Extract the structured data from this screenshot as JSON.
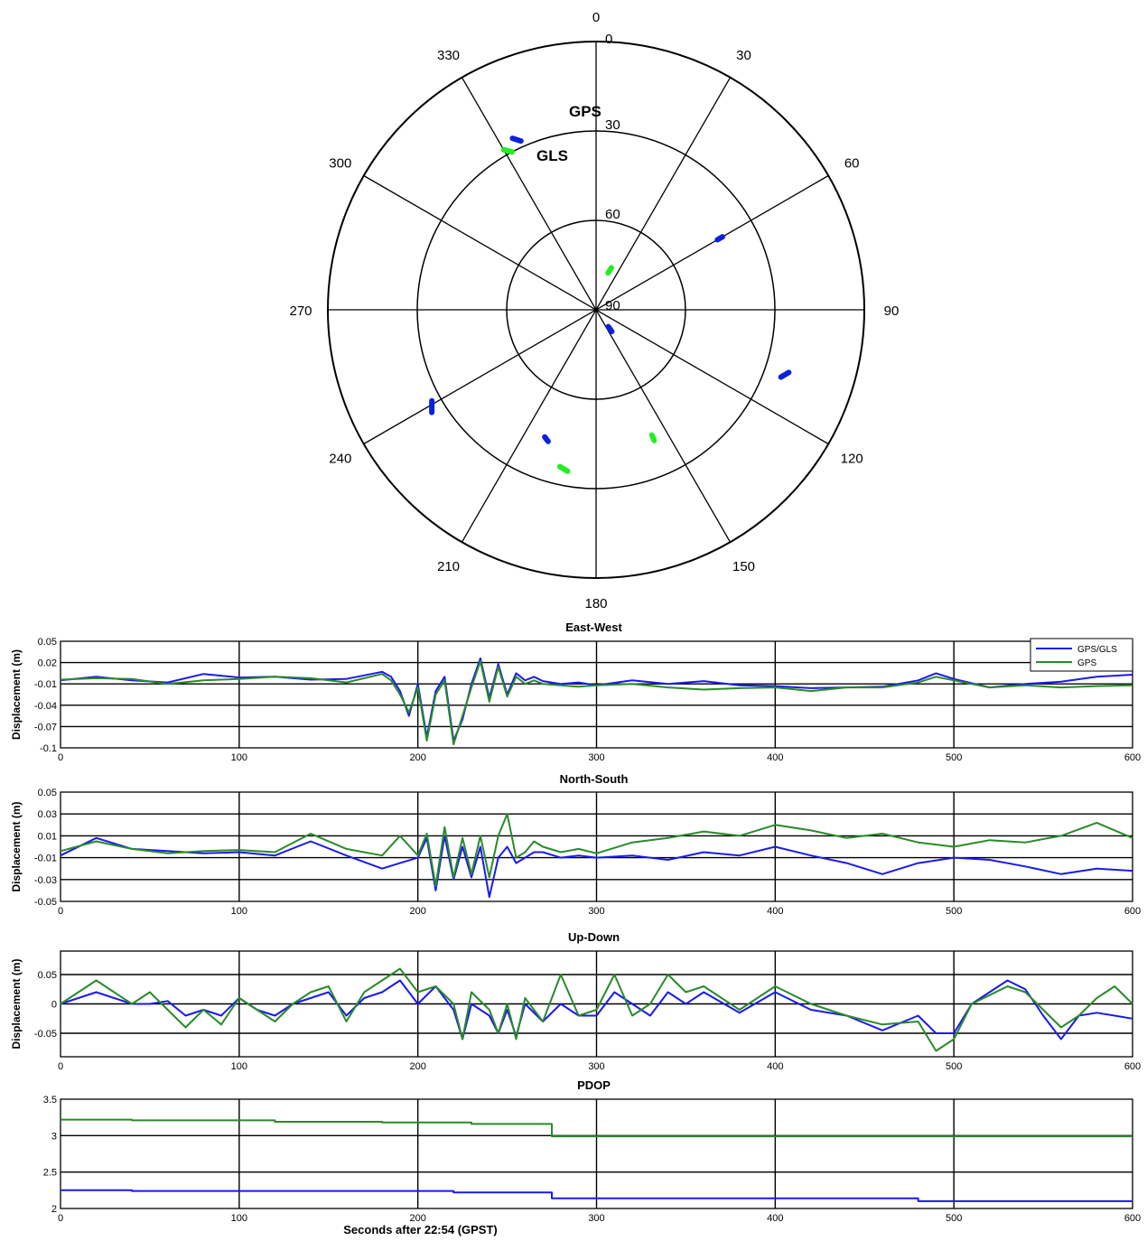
{
  "colors": {
    "gps_gls": "#1a1aee",
    "gps": "#2a8a2a",
    "polar_gps": "#0a22dd",
    "polar_gls": "#22ee22",
    "grid": "#000000"
  },
  "chart_data": [
    {
      "type": "polar-skyplot",
      "angle_labels": [
        "0",
        "30",
        "60",
        "90",
        "120",
        "150",
        "180",
        "210",
        "240",
        "270",
        "300",
        "330"
      ],
      "radial_labels": [
        "0",
        "30",
        "60",
        "90"
      ],
      "annotations": [
        "GPS",
        "GLS"
      ],
      "series": [
        {
          "name": "GPS",
          "tracks": [
            {
              "az": [
                -26,
                -24
              ],
              "el": [
                26,
                28
              ]
            },
            {
              "az": [
                60,
                60
              ],
              "el": [
                41,
                43
              ]
            },
            {
              "az": [
                108,
                110
              ],
              "el": [
                22,
                24
              ]
            },
            {
              "az": [
                -122,
                -119
              ],
              "el": [
                25,
                27
              ]
            },
            {
              "az": [
                -160,
                -158
              ],
              "el": [
                43,
                44
              ]
            },
            {
              "az": [
                144,
                144
              ],
              "el": [
                81,
                83
              ]
            }
          ]
        },
        {
          "name": "GLS",
          "tracks": [
            {
              "az": [
                -30,
                -28
              ],
              "el": [
                28,
                30
              ]
            },
            {
              "az": [
                20,
                18
              ],
              "el": [
                75,
                77
              ]
            },
            {
              "az": [
                156,
                156
              ],
              "el": [
                42,
                44
              ]
            },
            {
              "az": [
                -170,
                -167
              ],
              "el": [
                35,
                36
              ]
            }
          ]
        }
      ]
    },
    {
      "type": "line",
      "title": "East-West",
      "ylabel": "Displacement (m)",
      "xlim": [
        0,
        600
      ],
      "ylim": [
        -0.1,
        0.05
      ],
      "yticks": [
        "0.05",
        "0.02",
        "-0.01",
        "-0.04",
        "-0.07",
        "-0.1"
      ],
      "ytick_values": [
        0.05,
        0.02,
        -0.01,
        -0.04,
        -0.07,
        -0.1
      ],
      "xticks": [
        "0",
        "100",
        "200",
        "300",
        "400",
        "500",
        "600"
      ],
      "legend": [
        "GPS/GLS",
        "GPS"
      ],
      "legend_position": "top-right",
      "grid": true,
      "series": [
        {
          "name": "GPS/GLS",
          "x": [
            0,
            20,
            40,
            60,
            80,
            100,
            120,
            140,
            160,
            180,
            185,
            190,
            195,
            200,
            205,
            210,
            215,
            220,
            225,
            230,
            235,
            240,
            245,
            250,
            255,
            260,
            265,
            270,
            280,
            290,
            300,
            320,
            340,
            360,
            380,
            400,
            420,
            440,
            460,
            480,
            490,
            500,
            520,
            540,
            560,
            580,
            600
          ],
          "y": [
            -0.005,
            0.0,
            -0.005,
            -0.008,
            0.004,
            -0.001,
            0.0,
            -0.004,
            -0.003,
            0.007,
            0.0,
            -0.02,
            -0.055,
            -0.01,
            -0.085,
            -0.02,
            0.0,
            -0.09,
            -0.06,
            -0.01,
            0.026,
            -0.03,
            0.018,
            -0.025,
            0.005,
            -0.005,
            0.0,
            -0.006,
            -0.01,
            -0.008,
            -0.012,
            -0.005,
            -0.01,
            -0.006,
            -0.012,
            -0.013,
            -0.016,
            -0.015,
            -0.014,
            -0.005,
            0.005,
            -0.003,
            -0.015,
            -0.01,
            -0.007,
            0.0,
            0.003
          ]
        },
        {
          "name": "GPS",
          "x": [
            0,
            20,
            40,
            60,
            80,
            100,
            120,
            140,
            160,
            180,
            185,
            190,
            195,
            200,
            205,
            210,
            215,
            220,
            225,
            230,
            235,
            240,
            245,
            250,
            255,
            260,
            265,
            270,
            280,
            290,
            300,
            320,
            340,
            360,
            380,
            400,
            420,
            440,
            460,
            480,
            490,
            500,
            520,
            540,
            560,
            580,
            600
          ],
          "y": [
            -0.004,
            -0.002,
            -0.003,
            -0.01,
            -0.005,
            -0.003,
            0.0,
            -0.002,
            -0.008,
            0.004,
            -0.005,
            -0.025,
            -0.05,
            -0.015,
            -0.09,
            -0.025,
            -0.005,
            -0.095,
            -0.055,
            -0.015,
            0.022,
            -0.035,
            0.014,
            -0.028,
            0.0,
            -0.01,
            -0.005,
            -0.01,
            -0.012,
            -0.014,
            -0.012,
            -0.01,
            -0.015,
            -0.018,
            -0.016,
            -0.015,
            -0.02,
            -0.015,
            -0.015,
            -0.008,
            0.0,
            -0.005,
            -0.015,
            -0.012,
            -0.015,
            -0.013,
            -0.012
          ]
        }
      ]
    },
    {
      "type": "line",
      "title": "North-South",
      "ylabel": "Displacement (m)",
      "xlim": [
        0,
        600
      ],
      "ylim": [
        -0.05,
        0.05
      ],
      "yticks": [
        "0.05",
        "0.03",
        "0.01",
        "-0.01",
        "-0.03",
        "-0.05"
      ],
      "ytick_values": [
        0.05,
        0.03,
        0.01,
        -0.01,
        -0.03,
        -0.05
      ],
      "xticks": [
        "0",
        "100",
        "200",
        "300",
        "400",
        "500",
        "600"
      ],
      "grid": true,
      "series": [
        {
          "name": "GPS/GLS",
          "x": [
            0,
            20,
            40,
            60,
            80,
            100,
            120,
            140,
            160,
            180,
            190,
            200,
            205,
            210,
            215,
            220,
            225,
            230,
            235,
            240,
            245,
            250,
            255,
            260,
            265,
            270,
            280,
            290,
            300,
            320,
            340,
            360,
            380,
            400,
            420,
            440,
            460,
            480,
            500,
            520,
            540,
            560,
            580,
            600
          ],
          "y": [
            -0.008,
            0.008,
            -0.002,
            -0.004,
            -0.006,
            -0.005,
            -0.008,
            0.005,
            -0.008,
            -0.02,
            -0.015,
            -0.01,
            0.008,
            -0.04,
            0.01,
            -0.03,
            0.0,
            -0.028,
            0.0,
            -0.046,
            -0.01,
            0.0,
            -0.015,
            -0.01,
            -0.005,
            -0.005,
            -0.01,
            -0.008,
            -0.01,
            -0.008,
            -0.012,
            -0.005,
            -0.008,
            0.0,
            -0.008,
            -0.015,
            -0.025,
            -0.015,
            -0.01,
            -0.012,
            -0.018,
            -0.025,
            -0.02,
            -0.022
          ]
        },
        {
          "name": "GPS",
          "x": [
            0,
            20,
            40,
            60,
            80,
            100,
            120,
            140,
            160,
            180,
            190,
            200,
            205,
            210,
            215,
            220,
            225,
            230,
            235,
            240,
            245,
            250,
            255,
            260,
            265,
            270,
            280,
            290,
            300,
            320,
            340,
            360,
            380,
            400,
            420,
            440,
            460,
            480,
            500,
            520,
            540,
            560,
            580,
            600
          ],
          "y": [
            -0.004,
            0.005,
            -0.002,
            -0.006,
            -0.004,
            -0.003,
            -0.005,
            0.012,
            -0.002,
            -0.008,
            0.01,
            -0.008,
            0.012,
            -0.036,
            0.018,
            -0.028,
            0.008,
            -0.025,
            0.01,
            -0.028,
            0.01,
            0.03,
            -0.01,
            -0.005,
            0.005,
            0.0,
            -0.005,
            -0.002,
            -0.006,
            0.004,
            0.008,
            0.014,
            0.01,
            0.02,
            0.015,
            0.008,
            0.012,
            0.004,
            0.0,
            0.006,
            0.004,
            0.01,
            0.022,
            0.008
          ]
        }
      ]
    },
    {
      "type": "line",
      "title": "Up-Down",
      "ylabel": "Displacement (m)",
      "xlim": [
        0,
        600
      ],
      "ylim": [
        -0.09,
        0.09
      ],
      "yticks": [
        "0.05",
        "0",
        "-0.05"
      ],
      "ytick_values": [
        0.05,
        0.0,
        -0.05
      ],
      "xticks": [
        "0",
        "100",
        "200",
        "300",
        "400",
        "500",
        "600"
      ],
      "grid": true,
      "series": [
        {
          "name": "GPS/GLS",
          "x": [
            0,
            10,
            20,
            30,
            40,
            50,
            60,
            70,
            80,
            90,
            100,
            110,
            120,
            130,
            140,
            150,
            160,
            170,
            180,
            190,
            200,
            210,
            220,
            225,
            230,
            240,
            245,
            250,
            255,
            260,
            270,
            280,
            290,
            300,
            310,
            320,
            330,
            340,
            350,
            360,
            380,
            400,
            420,
            440,
            460,
            480,
            490,
            500,
            510,
            520,
            530,
            540,
            550,
            560,
            570,
            580,
            590,
            600
          ],
          "y": [
            0.0,
            0.01,
            0.02,
            0.01,
            0.0,
            0.0,
            0.005,
            -0.02,
            -0.01,
            -0.02,
            0.01,
            -0.01,
            -0.02,
            0.0,
            0.01,
            0.02,
            -0.02,
            0.01,
            0.02,
            0.04,
            0.0,
            0.03,
            -0.01,
            -0.06,
            0.0,
            -0.02,
            -0.05,
            -0.01,
            -0.055,
            0.0,
            -0.03,
            0.0,
            -0.02,
            -0.02,
            0.02,
            0.0,
            -0.02,
            0.02,
            0.0,
            0.02,
            -0.015,
            0.02,
            -0.01,
            -0.02,
            -0.045,
            -0.02,
            -0.05,
            -0.05,
            0.0,
            0.02,
            0.04,
            0.025,
            -0.02,
            -0.06,
            -0.02,
            -0.015,
            -0.02,
            -0.025
          ]
        },
        {
          "name": "GPS",
          "x": [
            0,
            10,
            20,
            30,
            40,
            50,
            60,
            70,
            80,
            90,
            100,
            110,
            120,
            130,
            140,
            150,
            160,
            170,
            180,
            190,
            200,
            210,
            220,
            225,
            230,
            240,
            245,
            250,
            255,
            260,
            270,
            280,
            290,
            300,
            310,
            320,
            330,
            340,
            350,
            360,
            380,
            400,
            420,
            440,
            460,
            480,
            490,
            500,
            510,
            520,
            530,
            540,
            550,
            560,
            570,
            580,
            590,
            600
          ],
          "y": [
            0.0,
            0.02,
            0.04,
            0.02,
            0.0,
            0.02,
            -0.01,
            -0.04,
            -0.01,
            -0.035,
            0.01,
            -0.01,
            -0.03,
            0.0,
            0.02,
            0.03,
            -0.03,
            0.02,
            0.04,
            0.06,
            0.02,
            0.03,
            0.0,
            -0.06,
            0.02,
            -0.01,
            -0.05,
            0.0,
            -0.06,
            0.01,
            -0.03,
            0.05,
            -0.02,
            -0.01,
            0.05,
            -0.02,
            0.0,
            0.05,
            0.02,
            0.03,
            -0.01,
            0.03,
            0.0,
            -0.02,
            -0.035,
            -0.03,
            -0.08,
            -0.06,
            0.0,
            0.015,
            0.03,
            0.02,
            -0.01,
            -0.04,
            -0.02,
            0.01,
            0.03,
            0.0
          ]
        }
      ]
    },
    {
      "type": "line",
      "title": "PDOP",
      "xlabel": "Seconds after 22:54 (GPST)",
      "xlim": [
        0,
        600
      ],
      "ylim": [
        2,
        3.5
      ],
      "yticks": [
        "3.5",
        "3",
        "2.5",
        "2"
      ],
      "ytick_values": [
        3.5,
        3.0,
        2.5,
        2.0
      ],
      "xticks": [
        "0",
        "100",
        "200",
        "300",
        "400",
        "500",
        "600"
      ],
      "grid": true,
      "series": [
        {
          "name": "GPS/GLS",
          "x": [
            0,
            40,
            40,
            220,
            220,
            275,
            275,
            480,
            480,
            600
          ],
          "y": [
            2.25,
            2.25,
            2.24,
            2.24,
            2.22,
            2.22,
            2.14,
            2.14,
            2.1,
            2.1
          ]
        },
        {
          "name": "GPS",
          "x": [
            0,
            40,
            40,
            120,
            120,
            180,
            180,
            230,
            230,
            275,
            275,
            600
          ],
          "y": [
            3.22,
            3.22,
            3.21,
            3.21,
            3.19,
            3.19,
            3.18,
            3.18,
            3.16,
            3.16,
            2.99,
            2.99
          ]
        }
      ]
    }
  ]
}
